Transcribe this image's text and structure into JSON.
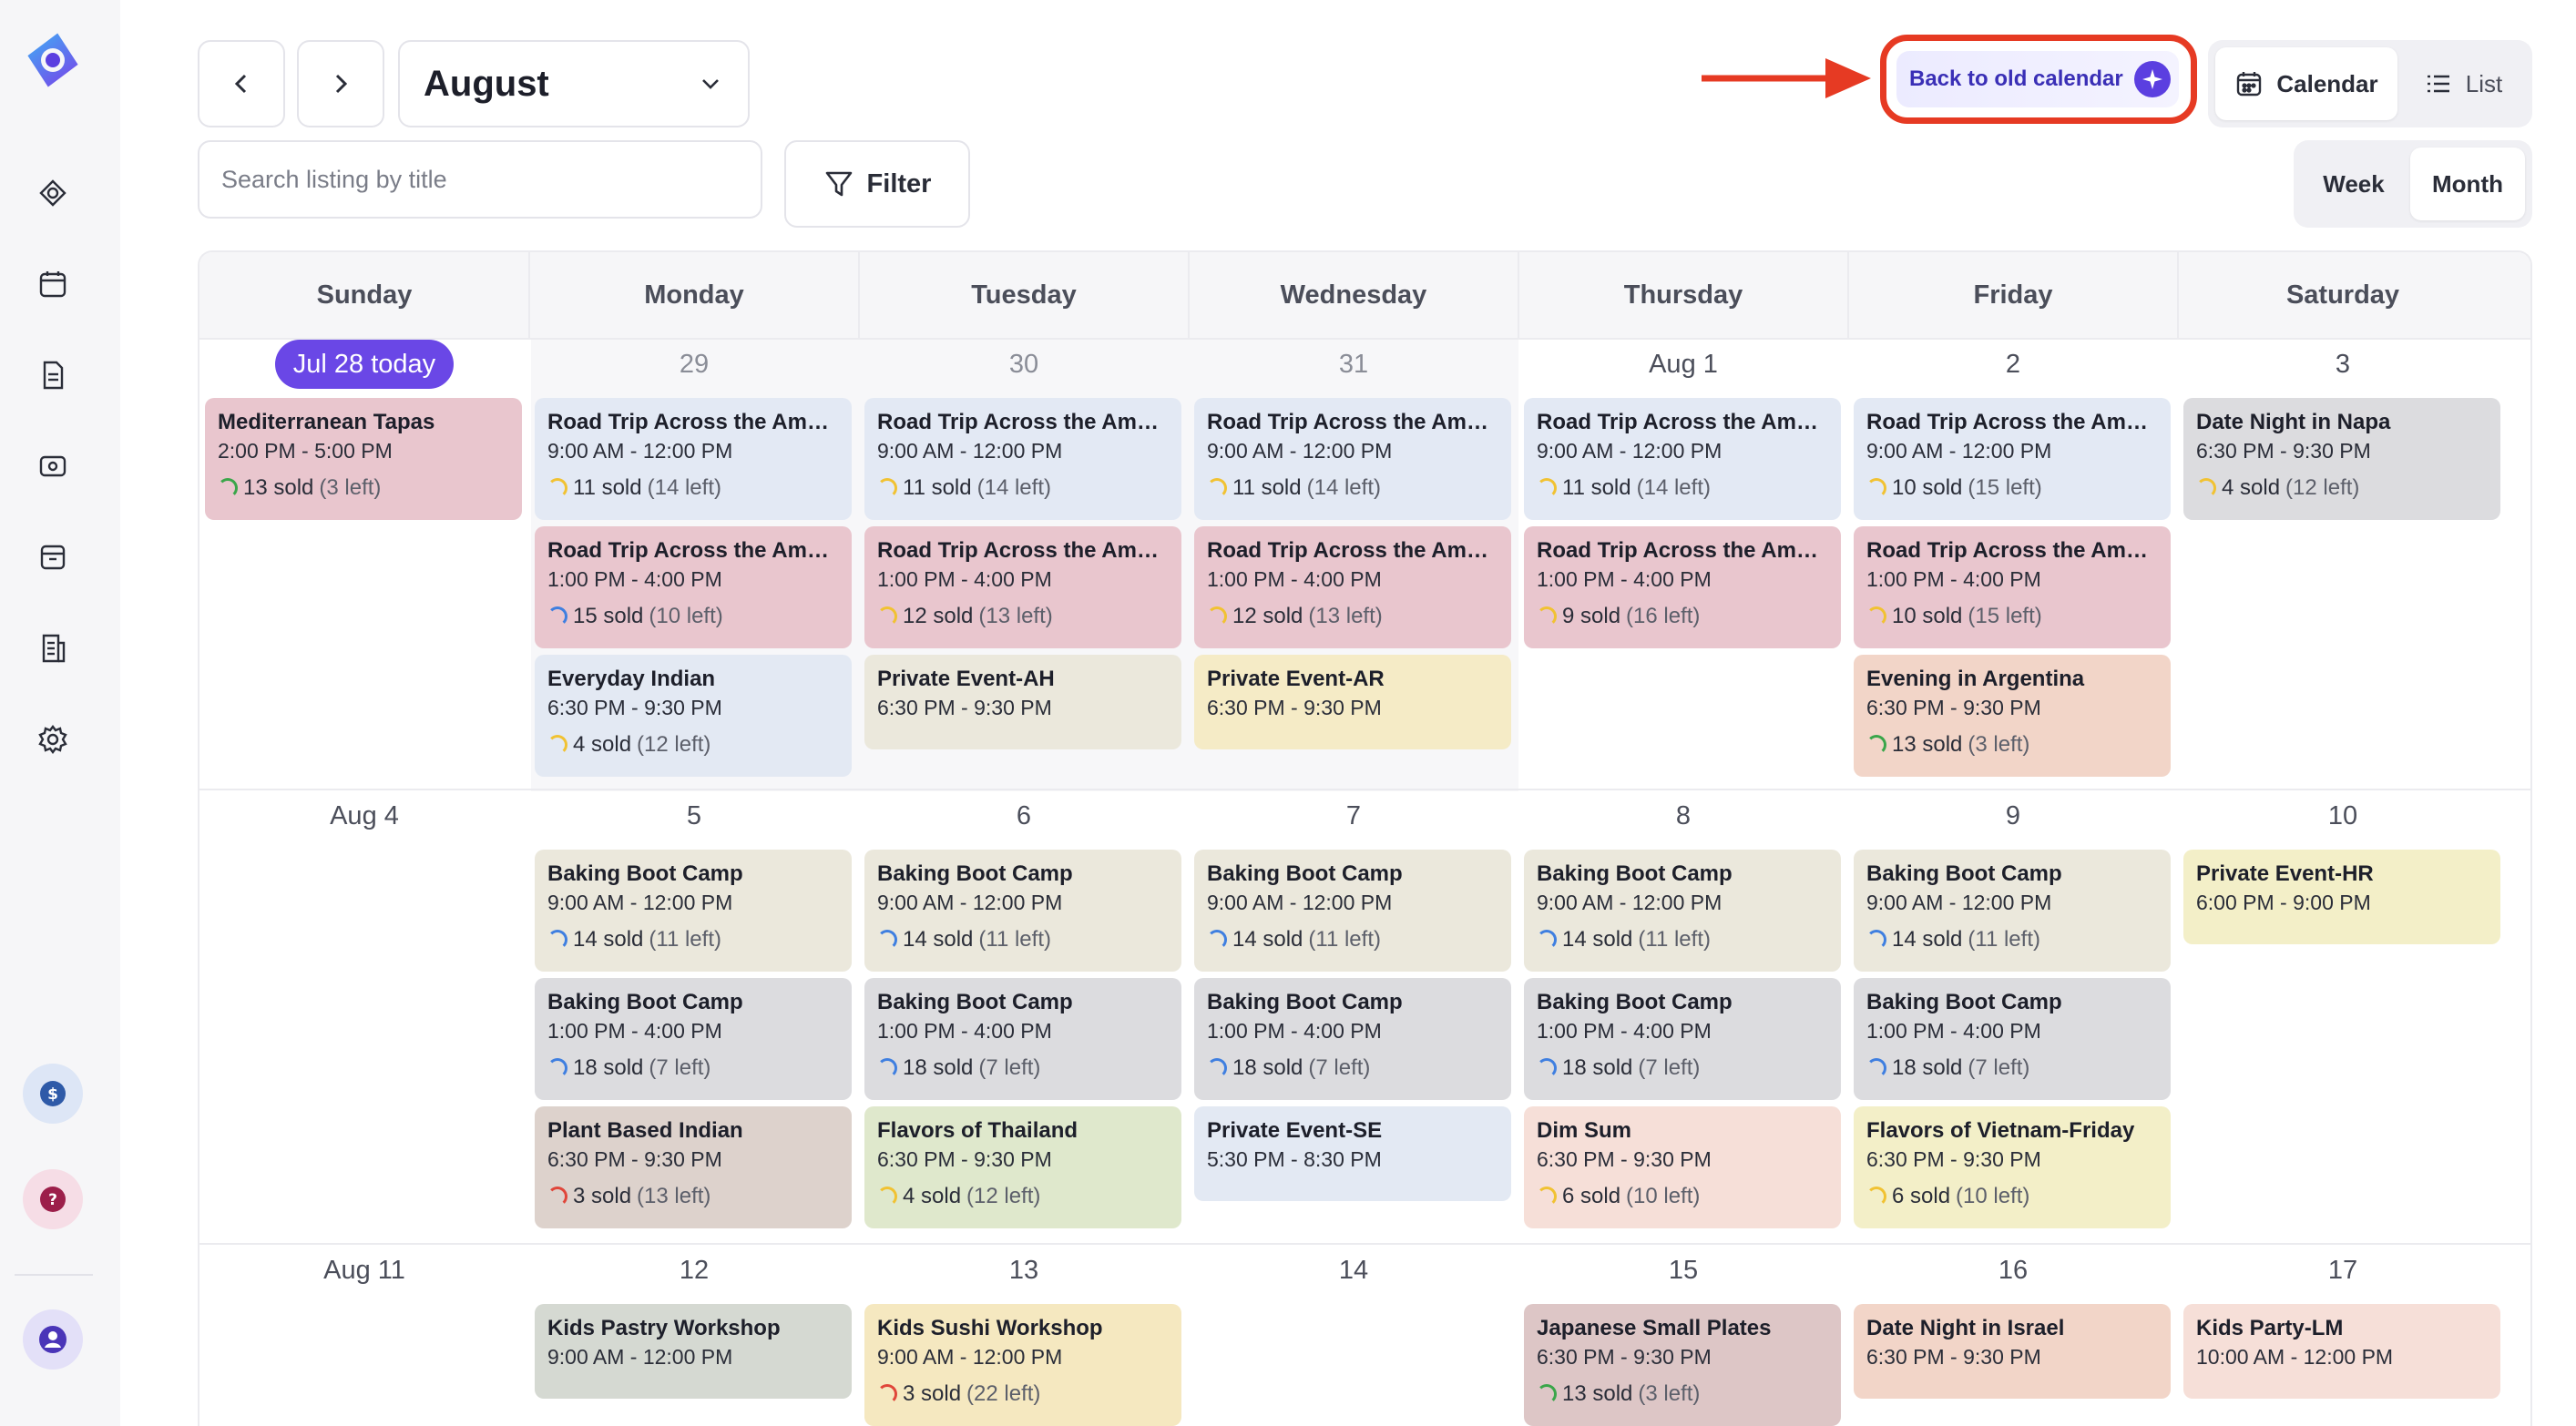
{
  "app": {
    "accent": "#6a47e6",
    "highlight_ring": "#e63a23"
  },
  "sidebar": {
    "icons": [
      "logo",
      "experiences-icon",
      "calendar-icon",
      "document-icon",
      "ticket-icon",
      "store-icon",
      "report-icon",
      "settings-icon"
    ],
    "bottom": [
      "billing-icon",
      "help-icon",
      "account-icon"
    ]
  },
  "header": {
    "prev_icon": "chevron-left-icon",
    "next_icon": "chevron-right-icon",
    "month": "August",
    "search_placeholder": "Search listing by title",
    "filter_label": "Filter",
    "old_calendar_label": "Back to old calendar",
    "view_calendar": "Calendar",
    "view_list": "List",
    "range_week": "Week",
    "range_month": "Month"
  },
  "calendar": {
    "days_of_week": [
      "Sunday",
      "Monday",
      "Tuesday",
      "Wednesday",
      "Thursday",
      "Friday",
      "Saturday"
    ],
    "weeks": [
      {
        "dates": [
          "Jul 28 today",
          "29",
          "30",
          "31",
          "Aug 1",
          "2",
          "3"
        ],
        "days": [
          [
            {
              "title": "Mediterranean Tapas",
              "time": "2:00 PM - 5:00 PM",
              "sold": "13 sold",
              "left": "(3 left)",
              "color": "pink",
              "ring": "#3aa64a"
            }
          ],
          [
            {
              "title": "Road Trip Across the Ameri...",
              "time": "9:00 AM - 12:00 PM",
              "sold": "11 sold",
              "left": "(14 left)",
              "color": "blue",
              "ring": "#f1c232"
            },
            {
              "title": "Road Trip Across the Ameri...",
              "time": "1:00 PM - 4:00 PM",
              "sold": "15 sold",
              "left": "(10 left)",
              "color": "pink",
              "ring": "#3f7fe0"
            },
            {
              "title": "Everyday Indian",
              "time": "6:30 PM - 9:30 PM",
              "sold": "4 sold",
              "left": "(12 left)",
              "color": "light",
              "ring": "#f1c232"
            }
          ],
          [
            {
              "title": "Road Trip Across the Ameri...",
              "time": "9:00 AM - 12:00 PM",
              "sold": "11 sold",
              "left": "(14 left)",
              "color": "blue",
              "ring": "#f1c232"
            },
            {
              "title": "Road Trip Across the Ameri...",
              "time": "1:00 PM - 4:00 PM",
              "sold": "12 sold",
              "left": "(13 left)",
              "color": "pink",
              "ring": "#f1c232"
            },
            {
              "title": "Private Event-AH",
              "time": "6:30 PM - 9:30 PM",
              "sold": "",
              "left": "",
              "color": "beige",
              "ring": ""
            }
          ],
          [
            {
              "title": "Road Trip Across the Ameri...",
              "time": "9:00 AM - 12:00 PM",
              "sold": "11 sold",
              "left": "(14 left)",
              "color": "blue",
              "ring": "#f1c232"
            },
            {
              "title": "Road Trip Across the Ameri...",
              "time": "1:00 PM - 4:00 PM",
              "sold": "12 sold",
              "left": "(13 left)",
              "color": "pink",
              "ring": "#f1c232"
            },
            {
              "title": "Private Event-AR",
              "time": "6:30 PM - 9:30 PM",
              "sold": "",
              "left": "",
              "color": "yellow",
              "ring": ""
            }
          ],
          [
            {
              "title": "Road Trip Across the Ameri...",
              "time": "9:00 AM - 12:00 PM",
              "sold": "11 sold",
              "left": "(14 left)",
              "color": "blue",
              "ring": "#f1c232"
            },
            {
              "title": "Road Trip Across the Ameri...",
              "time": "1:00 PM - 4:00 PM",
              "sold": "9 sold",
              "left": "(16 left)",
              "color": "pink",
              "ring": "#f1c232"
            }
          ],
          [
            {
              "title": "Road Trip Across the Ameri...",
              "time": "9:00 AM - 12:00 PM",
              "sold": "10 sold",
              "left": "(15 left)",
              "color": "blue",
              "ring": "#f1c232"
            },
            {
              "title": "Road Trip Across the Ameri...",
              "time": "1:00 PM - 4:00 PM",
              "sold": "10 sold",
              "left": "(15 left)",
              "color": "pink",
              "ring": "#f1c232"
            },
            {
              "title": "Evening in Argentina",
              "time": "6:30 PM - 9:30 PM",
              "sold": "13 sold",
              "left": "(3 left)",
              "color": "peach",
              "ring": "#3aa64a"
            }
          ],
          [
            {
              "title": "Date Night in Napa",
              "time": "6:30 PM - 9:30 PM",
              "sold": "4 sold",
              "left": "(12 left)",
              "color": "gray",
              "ring": "#f1c232"
            }
          ]
        ]
      },
      {
        "dates": [
          "Aug 4",
          "5",
          "6",
          "7",
          "8",
          "9",
          "10"
        ],
        "days": [
          [],
          [
            {
              "title": "Baking Boot Camp",
              "time": "9:00 AM - 12:00 PM",
              "sold": "14 sold",
              "left": "(11 left)",
              "color": "beige",
              "ring": "#3f7fe0"
            },
            {
              "title": "Baking Boot Camp",
              "time": "1:00 PM - 4:00 PM",
              "sold": "18 sold",
              "left": "(7 left)",
              "color": "gray",
              "ring": "#3f7fe0"
            },
            {
              "title": "Plant Based Indian",
              "time": "6:30 PM - 9:30 PM",
              "sold": "3 sold",
              "left": "(13 left)",
              "color": "taupe",
              "ring": "#e0463a"
            }
          ],
          [
            {
              "title": "Baking Boot Camp",
              "time": "9:00 AM - 12:00 PM",
              "sold": "14 sold",
              "left": "(11 left)",
              "color": "beige",
              "ring": "#3f7fe0"
            },
            {
              "title": "Baking Boot Camp",
              "time": "1:00 PM - 4:00 PM",
              "sold": "18 sold",
              "left": "(7 left)",
              "color": "gray",
              "ring": "#3f7fe0"
            },
            {
              "title": "Flavors of Thailand",
              "time": "6:30 PM - 9:30 PM",
              "sold": "4 sold",
              "left": "(12 left)",
              "color": "green",
              "ring": "#f1c232"
            }
          ],
          [
            {
              "title": "Baking Boot Camp",
              "time": "9:00 AM - 12:00 PM",
              "sold": "14 sold",
              "left": "(11 left)",
              "color": "beige",
              "ring": "#3f7fe0"
            },
            {
              "title": "Baking Boot Camp",
              "time": "1:00 PM - 4:00 PM",
              "sold": "18 sold",
              "left": "(7 left)",
              "color": "gray",
              "ring": "#3f7fe0"
            },
            {
              "title": "Private Event-SE",
              "time": "5:30 PM - 8:30 PM",
              "sold": "",
              "left": "",
              "color": "light",
              "ring": ""
            }
          ],
          [
            {
              "title": "Baking Boot Camp",
              "time": "9:00 AM - 12:00 PM",
              "sold": "14 sold",
              "left": "(11 left)",
              "color": "beige",
              "ring": "#3f7fe0"
            },
            {
              "title": "Baking Boot Camp",
              "time": "1:00 PM - 4:00 PM",
              "sold": "18 sold",
              "left": "(7 left)",
              "color": "gray",
              "ring": "#3f7fe0"
            },
            {
              "title": "Dim Sum",
              "time": "6:30 PM - 9:30 PM",
              "sold": "6 sold",
              "left": "(10 left)",
              "color": "rose",
              "ring": "#f1c232"
            }
          ],
          [
            {
              "title": "Baking Boot Camp",
              "time": "9:00 AM - 12:00 PM",
              "sold": "14 sold",
              "left": "(11 left)",
              "color": "beige",
              "ring": "#3f7fe0"
            },
            {
              "title": "Baking Boot Camp",
              "time": "1:00 PM - 4:00 PM",
              "sold": "18 sold",
              "left": "(7 left)",
              "color": "gray",
              "ring": "#3f7fe0"
            },
            {
              "title": "Flavors of Vietnam-Friday",
              "time": "6:30 PM - 9:30 PM",
              "sold": "6 sold",
              "left": "(10 left)",
              "color": "lyel",
              "ring": "#f1c232"
            }
          ],
          [
            {
              "title": "Private Event-HR",
              "time": "6:00 PM - 9:00 PM",
              "sold": "",
              "left": "",
              "color": "lyel",
              "ring": ""
            }
          ]
        ]
      },
      {
        "dates": [
          "Aug 11",
          "12",
          "13",
          "14",
          "15",
          "16",
          "17"
        ],
        "days": [
          [],
          [
            {
              "title": "Kids Pastry Workshop",
              "time": "9:00 AM - 12:00 PM",
              "sold": "",
              "left": "",
              "color": "sage",
              "ring": ""
            }
          ],
          [
            {
              "title": "Kids Sushi Workshop",
              "time": "9:00 AM - 12:00 PM",
              "sold": "3 sold",
              "left": "(22 left)",
              "color": "gold",
              "ring": "#e0463a"
            }
          ],
          [],
          [
            {
              "title": "Japanese Small Plates",
              "time": "6:30 PM - 9:30 PM",
              "sold": "13 sold",
              "left": "(3 left)",
              "color": "mauve",
              "ring": "#3aa64a"
            }
          ],
          [
            {
              "title": "Date Night in Israel",
              "time": "6:30 PM - 9:30 PM",
              "sold": "",
              "left": "",
              "color": "peach",
              "ring": ""
            }
          ],
          [
            {
              "title": "Kids Party-LM",
              "time": "10:00 AM - 12:00 PM",
              "sold": "",
              "left": "",
              "color": "rose",
              "ring": ""
            }
          ]
        ]
      }
    ]
  }
}
